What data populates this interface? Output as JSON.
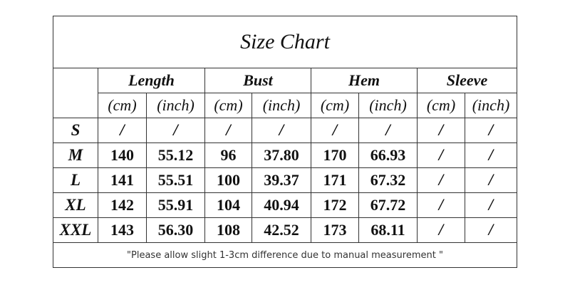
{
  "title": "Size Chart",
  "table": {
    "groups": [
      "Length",
      "Bust",
      "Hem",
      "Sleeve"
    ],
    "units": [
      "(cm)",
      "(inch)",
      "(cm)",
      "(inch)",
      "(cm)",
      "(inch)",
      "(cm)",
      "(inch)"
    ],
    "rows": [
      [
        "S",
        "/",
        "/",
        "/",
        "/",
        "/",
        "/",
        "/",
        "/"
      ],
      [
        "M",
        "140",
        "55.12",
        "96",
        "37.80",
        "170",
        "66.93",
        "/",
        "/"
      ],
      [
        "L",
        "141",
        "55.51",
        "100",
        "39.37",
        "171",
        "67.32",
        "/",
        "/"
      ],
      [
        "XL",
        "142",
        "55.91",
        "104",
        "40.94",
        "172",
        "67.72",
        "/",
        "/"
      ],
      [
        "XXL",
        "143",
        "56.30",
        "108",
        "42.52",
        "173",
        "68.11",
        "/",
        "/"
      ]
    ]
  },
  "note": "\"Please allow slight 1-3cm difference due to manual measurement \""
}
